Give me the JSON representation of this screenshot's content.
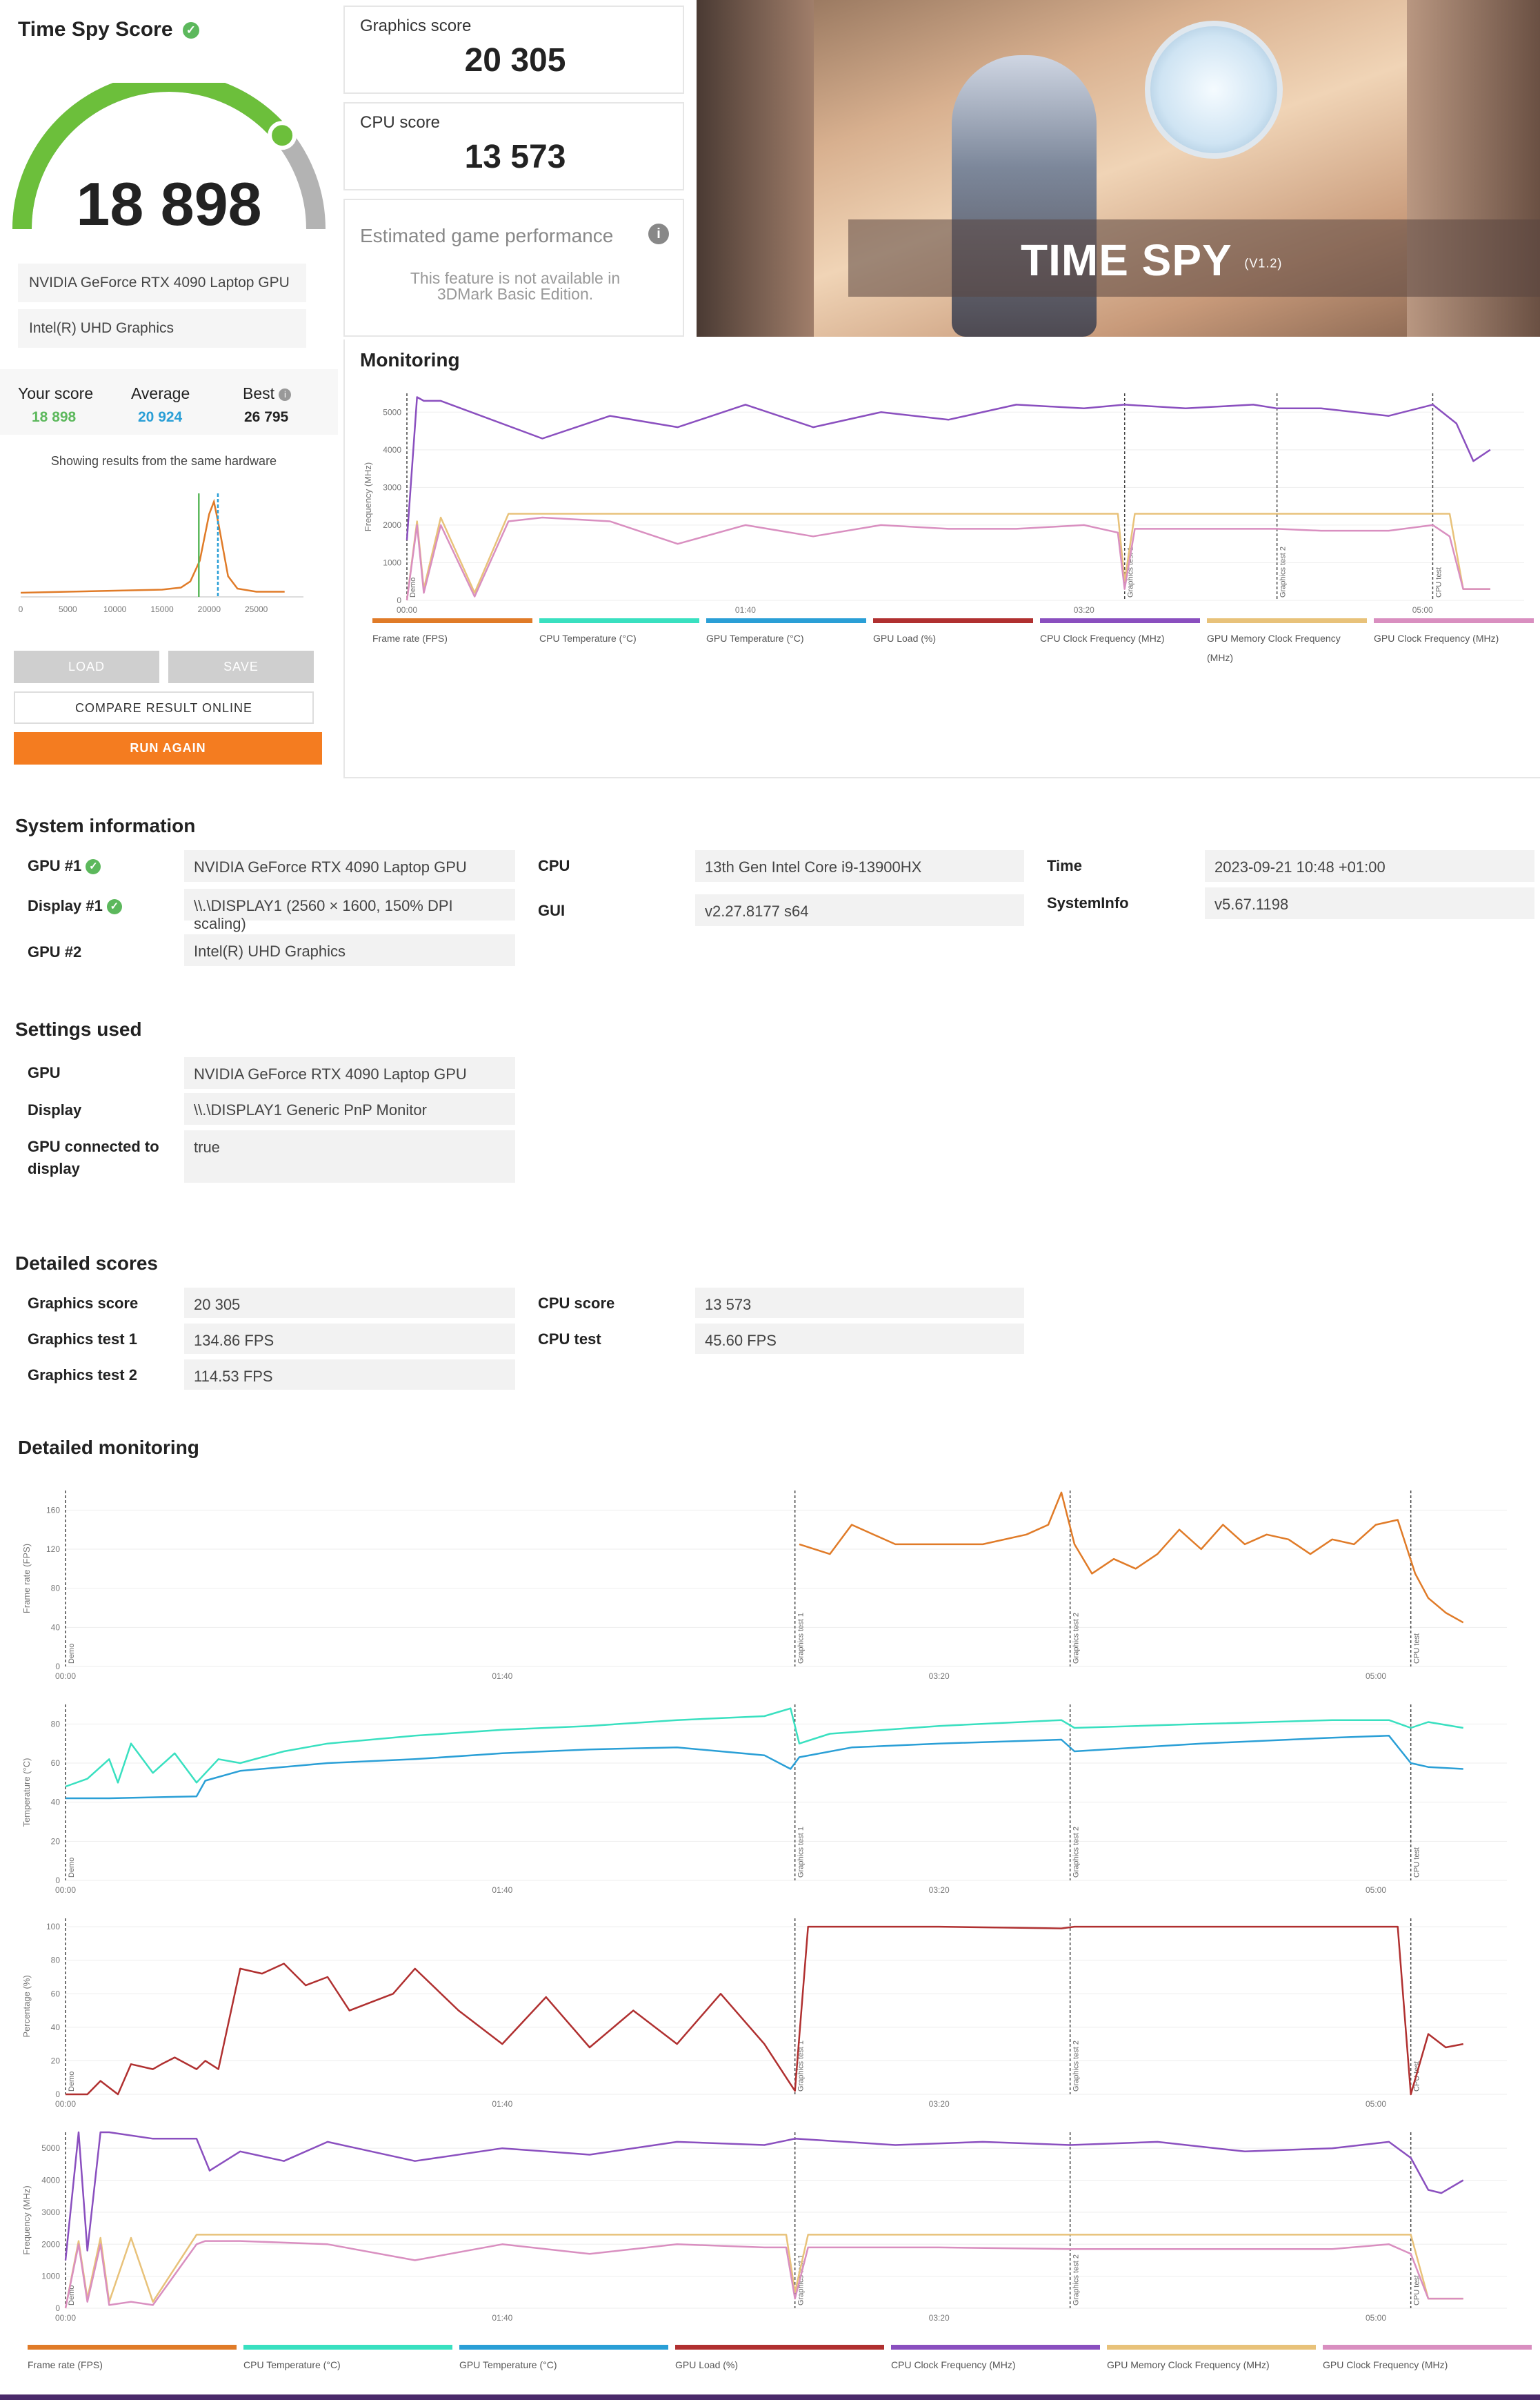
{
  "score_panel": {
    "title": "Time Spy Score",
    "score": "18 898",
    "gauge_fraction": 0.78,
    "gpu1": "NVIDIA GeForce RTX 4090 Laptop GPU",
    "gpu2": "Intel(R) UHD Graphics",
    "your_score_label": "Your score",
    "your_score": "18 898",
    "average_label": "Average",
    "average": "20 924",
    "best_label": "Best",
    "best": "26 795",
    "same_hw_note": "Showing results from the same hardware",
    "dist_ticks": [
      "0",
      "5000",
      "10000",
      "15000",
      "20000",
      "25000"
    ],
    "load": "LOAD",
    "save": "SAVE",
    "compare": "COMPARE RESULT ONLINE",
    "run_again": "RUN AGAIN"
  },
  "scores": {
    "graphics_label": "Graphics score",
    "graphics": "20 305",
    "cpu_label": "CPU score",
    "cpu": "13 573",
    "egp_label": "Estimated game performance",
    "egp_note": "This feature is not available in 3DMark Basic Edition."
  },
  "banner": {
    "title": "TIME SPY",
    "version": "(V1.2)"
  },
  "monitoring": {
    "title": "Monitoring",
    "ylabel": "Frequency (MHz)",
    "yticks": [
      "0",
      "1000",
      "2000",
      "3000",
      "4000",
      "5000"
    ],
    "xticks": [
      "00:00",
      "01:40",
      "03:20",
      "05:00"
    ],
    "markers": [
      "Demo",
      "Graphics test 1",
      "Graphics test 2",
      "CPU test"
    ]
  },
  "legend": [
    {
      "label": "Frame rate (FPS)",
      "color": "#e07b28"
    },
    {
      "label": "CPU Temperature (°C)",
      "color": "#39e0c0"
    },
    {
      "label": "GPU Temperature (°C)",
      "color": "#2a9fd6"
    },
    {
      "label": "GPU Load (%)",
      "color": "#b03030"
    },
    {
      "label": "CPU Clock Frequency (MHz)",
      "color": "#8a4fbf"
    },
    {
      "label": "GPU Memory Clock Frequency (MHz)",
      "color": "#e8c27a"
    },
    {
      "label": "GPU Clock Frequency (MHz)",
      "color": "#d98fc0"
    }
  ],
  "system_info": {
    "title": "System information",
    "gpu1_label": "GPU #1",
    "gpu1": "NVIDIA GeForce RTX 4090 Laptop GPU",
    "display1_label": "Display #1",
    "display1": "\\\\.\\DISPLAY1 (2560 × 1600, 150% DPI scaling)",
    "gpu2_label": "GPU #2",
    "gpu2": "Intel(R) UHD Graphics",
    "cpu_label": "CPU",
    "cpu": "13th Gen Intel Core i9-13900HX",
    "gui_label": "GUI",
    "gui": "v2.27.8177 s64",
    "time_label": "Time",
    "time": "2023-09-21 10:48 +01:00",
    "sysinfo_label": "SystemInfo",
    "sysinfo": "v5.67.1198"
  },
  "settings": {
    "title": "Settings used",
    "gpu_label": "GPU",
    "gpu": "NVIDIA GeForce RTX 4090 Laptop GPU",
    "display_label": "Display",
    "display": "\\\\.\\DISPLAY1 Generic PnP Monitor",
    "connected_label": "GPU connected to display",
    "connected": "true"
  },
  "detailed_scores": {
    "title": "Detailed scores",
    "graphics_label": "Graphics score",
    "graphics": "20 305",
    "gt1_label": "Graphics test 1",
    "gt1": "134.86 FPS",
    "gt2_label": "Graphics test 2",
    "gt2": "114.53 FPS",
    "cpu_label": "CPU score",
    "cpu": "13 573",
    "cputest_label": "CPU test",
    "cputest": "45.60 FPS"
  },
  "detailed_monitoring": {
    "title": "Detailed monitoring",
    "xticks": [
      "00:00",
      "01:40",
      "03:20",
      "05:00"
    ],
    "markers": [
      "Demo",
      "Graphics test 1",
      "Graphics test 2",
      "CPU test"
    ],
    "panels": [
      {
        "ylabel": "Frame rate (FPS)",
        "yticks": [
          "0",
          "40",
          "80",
          "120",
          "160"
        ]
      },
      {
        "ylabel": "Temperature (°C)",
        "yticks": [
          "0",
          "20",
          "40",
          "60",
          "80"
        ]
      },
      {
        "ylabel": "Percentage (%)",
        "yticks": [
          "0",
          "20",
          "40",
          "60",
          "80",
          "100"
        ]
      },
      {
        "ylabel": "Frequency (MHz)",
        "yticks": [
          "0",
          "1000",
          "2000",
          "3000",
          "4000",
          "5000"
        ]
      }
    ]
  },
  "chart_data": [
    {
      "type": "line",
      "ylabel": "Frequency (MHz)",
      "xlim": [
        0,
        330
      ],
      "ylim": [
        0,
        5500
      ],
      "markers_x": [
        0,
        212,
        257,
        303
      ],
      "series": [
        {
          "name": "CPU Clock Frequency (MHz)",
          "x": [
            0,
            3,
            5,
            10,
            40,
            60,
            80,
            100,
            120,
            140,
            160,
            180,
            200,
            212,
            230,
            250,
            257,
            270,
            290,
            303,
            310,
            315,
            320
          ],
          "values": [
            1600,
            5400,
            5300,
            5300,
            4300,
            4900,
            4600,
            5200,
            4600,
            5000,
            4800,
            5200,
            5100,
            5200,
            5100,
            5200,
            5100,
            5100,
            4900,
            5200,
            4700,
            3700,
            4000
          ]
        },
        {
          "name": "GPU Memory Clock Frequency (MHz)",
          "x": [
            0,
            3,
            5,
            10,
            20,
            30,
            40,
            80,
            120,
            160,
            200,
            210,
            212,
            215,
            257,
            303,
            308,
            312,
            320
          ],
          "values": [
            0,
            2100,
            300,
            2200,
            200,
            2300,
            2300,
            2300,
            2300,
            2300,
            2300,
            2300,
            500,
            2300,
            2300,
            2300,
            2300,
            300,
            300
          ]
        },
        {
          "name": "GPU Clock Frequency (MHz)",
          "x": [
            0,
            3,
            5,
            10,
            20,
            30,
            40,
            60,
            80,
            100,
            120,
            140,
            160,
            180,
            200,
            210,
            212,
            215,
            240,
            257,
            270,
            290,
            303,
            308,
            312,
            320
          ],
          "values": [
            0,
            2000,
            200,
            2000,
            100,
            2100,
            2200,
            2100,
            1500,
            2000,
            1700,
            2000,
            1900,
            1900,
            2000,
            1800,
            300,
            1900,
            1900,
            1900,
            1850,
            1850,
            2000,
            1700,
            300,
            300
          ]
        }
      ]
    },
    {
      "type": "line",
      "ylabel": "Frame rate (FPS)",
      "xlim": [
        0,
        330
      ],
      "ylim": [
        0,
        180
      ],
      "markers_x": [
        0,
        167,
        230,
        308
      ],
      "series": [
        {
          "name": "Frame rate (FPS)",
          "x": [
            168,
            175,
            180,
            190,
            200,
            210,
            220,
            225,
            228,
            231,
            235,
            240,
            245,
            250,
            255,
            260,
            265,
            270,
            275,
            280,
            285,
            290,
            295,
            300,
            305,
            309,
            312,
            316,
            320
          ],
          "values": [
            125,
            115,
            145,
            125,
            125,
            125,
            135,
            145,
            178,
            125,
            95,
            110,
            100,
            115,
            140,
            120,
            145,
            125,
            135,
            130,
            115,
            130,
            125,
            145,
            150,
            95,
            70,
            55,
            45
          ]
        }
      ]
    },
    {
      "type": "line",
      "ylabel": "Temperature (°C)",
      "xlim": [
        0,
        330
      ],
      "ylim": [
        0,
        90
      ],
      "markers_x": [
        0,
        167,
        230,
        308
      ],
      "series": [
        {
          "name": "CPU Temperature (°C)",
          "x": [
            0,
            5,
            10,
            12,
            15,
            20,
            25,
            30,
            35,
            40,
            50,
            60,
            80,
            100,
            120,
            140,
            160,
            166,
            168,
            175,
            200,
            228,
            231,
            260,
            290,
            303,
            308,
            312,
            320
          ],
          "values": [
            48,
            52,
            62,
            50,
            70,
            55,
            65,
            50,
            62,
            60,
            66,
            70,
            74,
            77,
            79,
            82,
            84,
            88,
            70,
            75,
            79,
            82,
            78,
            80,
            82,
            82,
            78,
            81,
            78
          ]
        },
        {
          "name": "GPU Temperature (°C)",
          "x": [
            0,
            10,
            30,
            32,
            40,
            60,
            80,
            100,
            120,
            140,
            160,
            166,
            168,
            180,
            200,
            228,
            231,
            260,
            290,
            303,
            308,
            312,
            320
          ],
          "values": [
            42,
            42,
            43,
            51,
            56,
            60,
            62,
            65,
            67,
            68,
            64,
            57,
            63,
            68,
            70,
            72,
            66,
            70,
            73,
            74,
            60,
            58,
            57
          ]
        }
      ]
    },
    {
      "type": "line",
      "ylabel": "Percentage (%)",
      "xlim": [
        0,
        330
      ],
      "ylim": [
        0,
        105
      ],
      "markers_x": [
        0,
        167,
        230,
        308
      ],
      "series": [
        {
          "name": "GPU Load (%)",
          "x": [
            0,
            5,
            8,
            12,
            15,
            20,
            22,
            25,
            30,
            32,
            35,
            40,
            45,
            50,
            55,
            60,
            65,
            70,
            75,
            80,
            90,
            100,
            110,
            120,
            130,
            140,
            150,
            160,
            165,
            167,
            170,
            175,
            200,
            228,
            231,
            250,
            300,
            305,
            308,
            312,
            316,
            320
          ],
          "values": [
            0,
            0,
            8,
            0,
            18,
            15,
            18,
            22,
            15,
            20,
            15,
            75,
            72,
            78,
            65,
            70,
            50,
            55,
            60,
            75,
            50,
            30,
            58,
            28,
            50,
            30,
            60,
            30,
            10,
            2,
            100,
            100,
            100,
            99,
            100,
            100,
            100,
            100,
            0,
            36,
            28,
            30
          ]
        }
      ]
    },
    {
      "type": "line",
      "ylabel": "Frequency (MHz)",
      "xlim": [
        0,
        330
      ],
      "ylim": [
        0,
        5500
      ],
      "markers_x": [
        0,
        167,
        230,
        308
      ],
      "series": [
        {
          "name": "CPU Clock Frequency (MHz)",
          "x": [
            0,
            3,
            5,
            8,
            10,
            20,
            30,
            33,
            40,
            50,
            60,
            80,
            100,
            120,
            140,
            160,
            167,
            190,
            210,
            230,
            250,
            270,
            290,
            303,
            308,
            312,
            315,
            320
          ],
          "values": [
            1500,
            5500,
            1800,
            5500,
            5500,
            5300,
            5300,
            4300,
            4900,
            4600,
            5200,
            4600,
            5000,
            4800,
            5200,
            5100,
            5300,
            5100,
            5200,
            5100,
            5200,
            4900,
            5000,
            5200,
            4700,
            3700,
            3600,
            4000
          ]
        },
        {
          "name": "GPU Memory Clock Frequency (MHz)",
          "x": [
            0,
            3,
            5,
            8,
            10,
            15,
            20,
            30,
            32,
            35,
            40,
            80,
            120,
            160,
            165,
            167,
            170,
            230,
            303,
            308,
            312,
            320
          ],
          "values": [
            0,
            2100,
            300,
            2200,
            200,
            2200,
            200,
            2300,
            2300,
            2300,
            2300,
            2300,
            2300,
            2300,
            2300,
            500,
            2300,
            2300,
            2300,
            2300,
            300,
            300
          ]
        },
        {
          "name": "GPU Clock Frequency (MHz)",
          "x": [
            0,
            3,
            5,
            8,
            10,
            15,
            20,
            30,
            32,
            40,
            60,
            80,
            100,
            120,
            140,
            160,
            165,
            167,
            170,
            200,
            230,
            260,
            290,
            303,
            308,
            312,
            320
          ],
          "values": [
            0,
            2000,
            200,
            2000,
            100,
            200,
            100,
            2000,
            2100,
            2100,
            2000,
            1500,
            2000,
            1700,
            2000,
            1900,
            1900,
            300,
            1900,
            1900,
            1850,
            1850,
            1850,
            2000,
            1700,
            300,
            300
          ]
        }
      ]
    },
    {
      "type": "line",
      "ylabel": "",
      "xlim": [
        0,
        30000
      ],
      "ylim": [
        0,
        1
      ],
      "series": [
        {
          "name": "",
          "x": [
            0,
            5000,
            10000,
            15000,
            17000,
            18000,
            19000,
            20000,
            20500,
            21000,
            22000,
            23000,
            25000,
            28000
          ],
          "values": [
            0.04,
            0.05,
            0.06,
            0.07,
            0.09,
            0.15,
            0.35,
            0.8,
            0.92,
            0.7,
            0.2,
            0.08,
            0.05,
            0.05
          ]
        }
      ]
    }
  ]
}
